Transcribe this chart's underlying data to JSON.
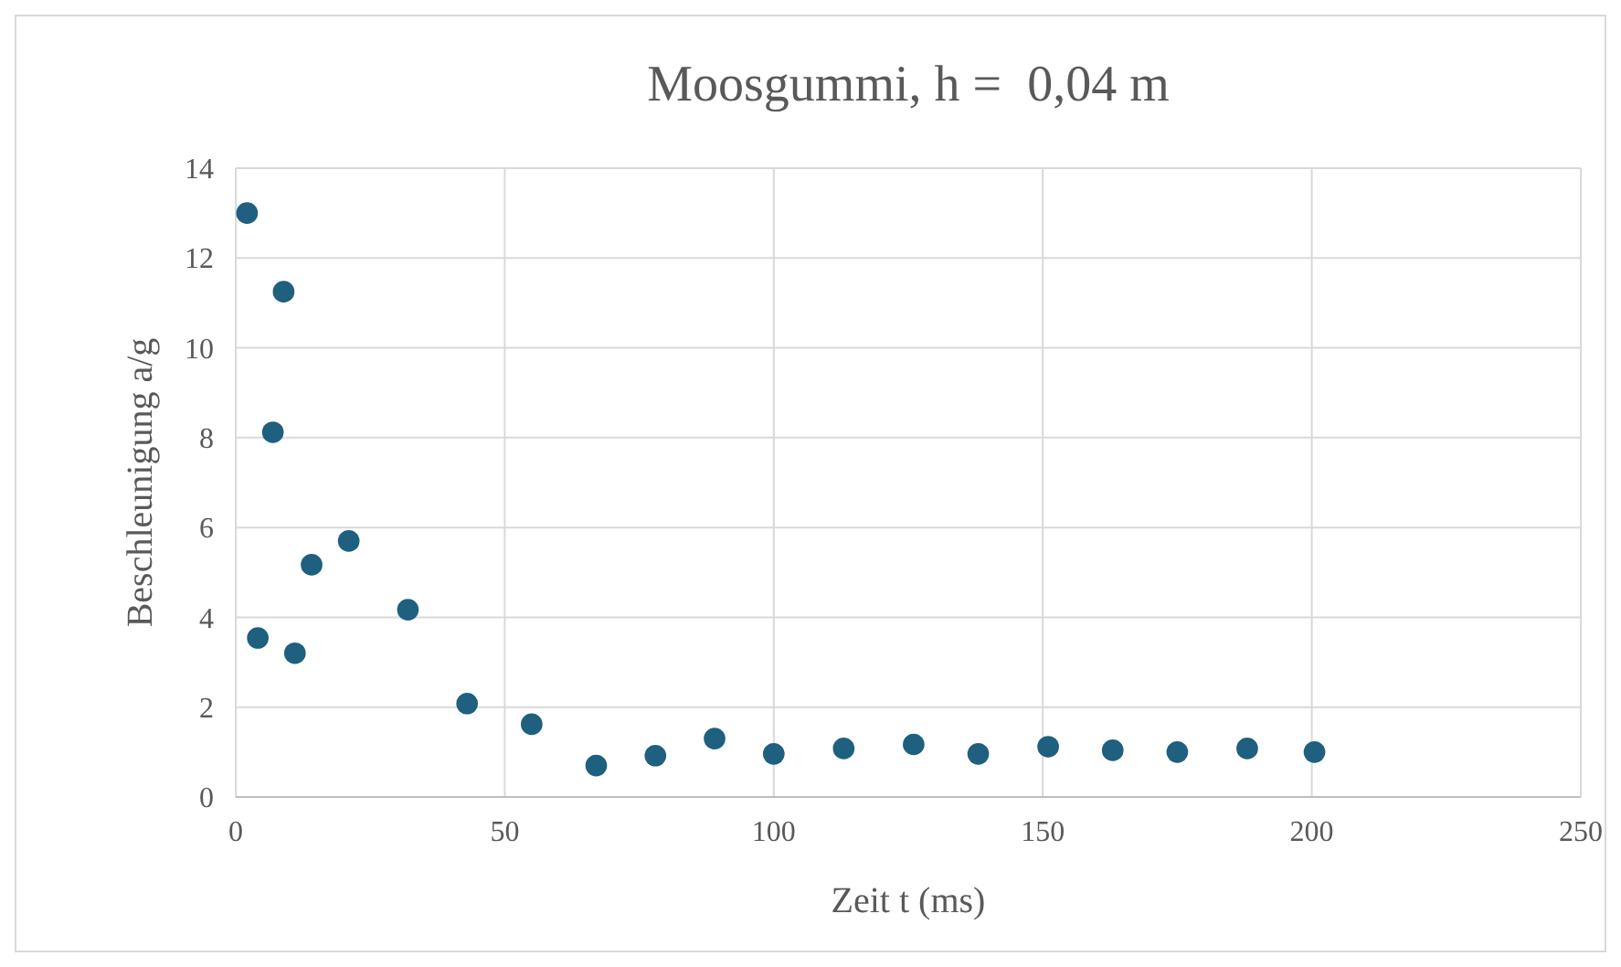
{
  "chart_data": {
    "type": "scatter",
    "title": "Moosgummi, h =  0,04 m",
    "xlabel": "Zeit t (ms)",
    "ylabel": "Beschleunigung a/g",
    "x": [
      2.1,
      8.9,
      6.9,
      4.1,
      11,
      14.1,
      21,
      32,
      43,
      55,
      67,
      78,
      89,
      100,
      113,
      126,
      138,
      151,
      163,
      175,
      188,
      200.5
    ],
    "series": [
      {
        "color": "#1f5f7f",
        "values": [
          13.0,
          11.25,
          8.12,
          3.54,
          3.2,
          5.17,
          5.7,
          4.17,
          2.08,
          1.62,
          0.7,
          0.92,
          1.3,
          0.96,
          1.08,
          1.17,
          0.96,
          1.12,
          1.04,
          1.0,
          1.08,
          1.0
        ]
      }
    ],
    "xlim": [
      0,
      250
    ],
    "xticks": [
      0,
      50,
      100,
      150,
      200,
      250
    ],
    "ylim": [
      0,
      14
    ],
    "yticks": [
      0,
      2,
      4,
      6,
      8,
      10,
      12,
      14
    ],
    "grid": true,
    "marker": "circle"
  }
}
